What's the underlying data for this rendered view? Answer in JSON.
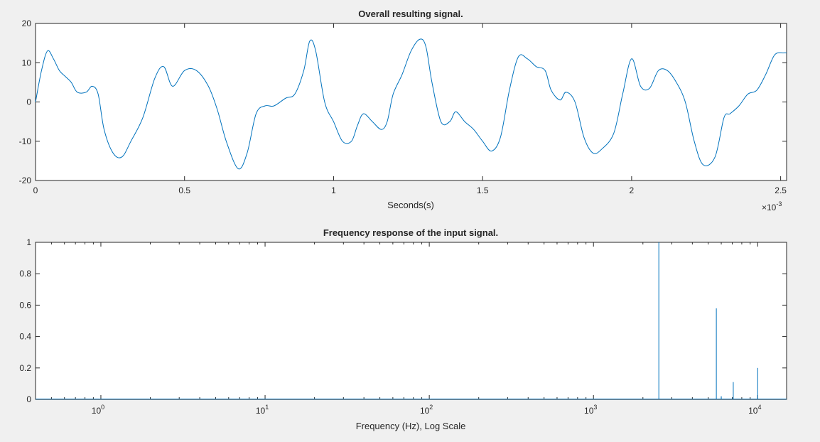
{
  "figure": {
    "background": "#f0f0f0",
    "line_color": "#0072bd"
  },
  "chart_data": [
    {
      "type": "line",
      "title": "Overall resulting signal.",
      "xlabel": "Seconds(s)",
      "ylabel": "",
      "x_multiplier_label": "×10",
      "x_multiplier_exponent": "-3",
      "xlim": [
        0,
        0.00252
      ],
      "ylim": [
        -20,
        20
      ],
      "xticks": [
        0,
        0.5,
        1,
        1.5,
        2,
        2.5
      ],
      "xtick_labels": [
        "0",
        "0.5",
        "1",
        "1.5",
        "2",
        "2.5"
      ],
      "yticks": [
        -20,
        -10,
        0,
        10,
        20
      ],
      "ytick_labels": [
        "-20",
        "-10",
        "0",
        "10",
        "20"
      ],
      "grid": false,
      "series": [
        {
          "x_unit_scale": 0.001,
          "x": [
            0,
            0.02,
            0.04,
            0.06,
            0.08,
            0.1,
            0.12,
            0.14,
            0.17,
            0.19,
            0.21,
            0.23,
            0.26,
            0.29,
            0.32,
            0.36,
            0.4,
            0.43,
            0.46,
            0.5,
            0.54,
            0.58,
            0.61,
            0.64,
            0.68,
            0.71,
            0.74,
            0.77,
            0.8,
            0.84,
            0.87,
            0.9,
            0.92,
            0.94,
            0.97,
            1.0,
            1.03,
            1.06,
            1.08,
            1.1,
            1.13,
            1.16,
            1.18,
            1.2,
            1.23,
            1.26,
            1.29,
            1.31,
            1.33,
            1.36,
            1.39,
            1.41,
            1.44,
            1.47,
            1.5,
            1.53,
            1.56,
            1.59,
            1.62,
            1.65,
            1.68,
            1.71,
            1.73,
            1.76,
            1.78,
            1.81,
            1.84,
            1.87,
            1.9,
            1.94,
            1.97,
            2.0,
            2.03,
            2.06,
            2.09,
            2.12,
            2.15,
            2.18,
            2.21,
            2.24,
            2.28,
            2.31,
            2.33,
            2.36,
            2.39,
            2.42,
            2.45,
            2.48,
            2.51,
            2.52
          ],
          "y": [
            0,
            8,
            13,
            11,
            8,
            6.5,
            5,
            2.5,
            2.5,
            4,
            2,
            -7,
            -13,
            -14,
            -10,
            -4,
            6,
            9,
            4,
            8,
            8,
            4,
            -2,
            -10,
            -17,
            -13,
            -3,
            -1,
            -1,
            1,
            2,
            8,
            15.5,
            13,
            0,
            -5,
            -10,
            -10,
            -6,
            -3,
            -5,
            -7,
            -5,
            2,
            7,
            13,
            16,
            14,
            5,
            -5,
            -5,
            -2.5,
            -5,
            -7,
            -10,
            -12.5,
            -9,
            3,
            11.5,
            11,
            9,
            8,
            3,
            0.5,
            2.5,
            0,
            -9,
            -13,
            -12,
            -8,
            2,
            11,
            4,
            3.5,
            8,
            8,
            5,
            0,
            -10,
            -16,
            -14,
            -4,
            -3,
            -1,
            2,
            3,
            7,
            12,
            12.5,
            12.5
          ]
        }
      ]
    },
    {
      "type": "line",
      "title": "Frequency response of the input signal.",
      "xlabel": "Frequency (Hz), Log Scale",
      "ylabel": "",
      "xscale": "log",
      "xlim": [
        0.4,
        15000
      ],
      "ylim": [
        0,
        1
      ],
      "xticks": [
        1,
        10,
        100,
        1000,
        10000
      ],
      "xtick_base": "10",
      "xtick_exponents": [
        "0",
        "1",
        "2",
        "3",
        "4"
      ],
      "yticks": [
        0,
        0.2,
        0.4,
        0.6,
        0.8,
        1
      ],
      "ytick_labels": [
        "0",
        "0.2",
        "0.4",
        "0.6",
        "0.8",
        "1"
      ],
      "grid": false,
      "peaks": [
        {
          "x": 2500,
          "y": 1.0
        },
        {
          "x": 5600,
          "y": 0.58
        },
        {
          "x": 6000,
          "y": 0.02
        },
        {
          "x": 7100,
          "y": 0.11
        },
        {
          "x": 10000,
          "y": 0.2
        }
      ]
    }
  ]
}
